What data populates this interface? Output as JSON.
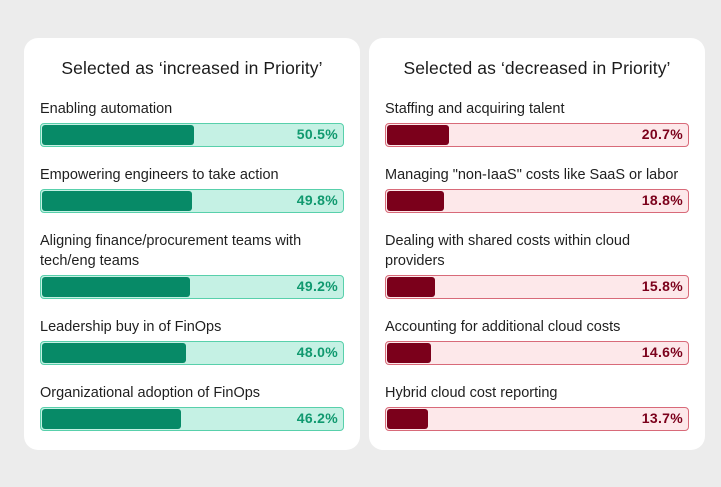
{
  "chart_data": [
    {
      "type": "bar",
      "orientation": "horizontal",
      "title": "Selected as ‘increased in Priority’",
      "categories": [
        "Enabling automation",
        "Empowering engineers to take action",
        "Aligning finance/procurement teams with tech/eng teams",
        "Leadership buy in of FinOps",
        "Organizational adoption of FinOps"
      ],
      "values": [
        50.5,
        49.8,
        49.2,
        48.0,
        46.2
      ],
      "value_labels": [
        "50.5%",
        "49.8%",
        "49.2%",
        "48.0%",
        "46.2%"
      ],
      "xlim": [
        0,
        100
      ],
      "colors": {
        "fill": "#078a67",
        "track": "#c5f1e4",
        "border": "#58d0ab",
        "text": "#10996f"
      }
    },
    {
      "type": "bar",
      "orientation": "horizontal",
      "title": "Selected as ‘decreased in Priority’",
      "categories": [
        "Staffing and acquiring talent",
        "Managing \"non-IaaS\" costs like SaaS or labor",
        "Dealing with shared costs within cloud providers",
        "Accounting for additional cloud costs",
        "Hybrid cloud cost reporting"
      ],
      "values": [
        20.7,
        18.8,
        15.8,
        14.6,
        13.7
      ],
      "value_labels": [
        "20.7%",
        "18.8%",
        "15.8%",
        "14.6%",
        "13.7%"
      ],
      "xlim": [
        0,
        100
      ],
      "colors": {
        "fill": "#7b001b",
        "track": "#fde8ea",
        "border": "#d86a79",
        "text": "#7b001b"
      }
    }
  ]
}
